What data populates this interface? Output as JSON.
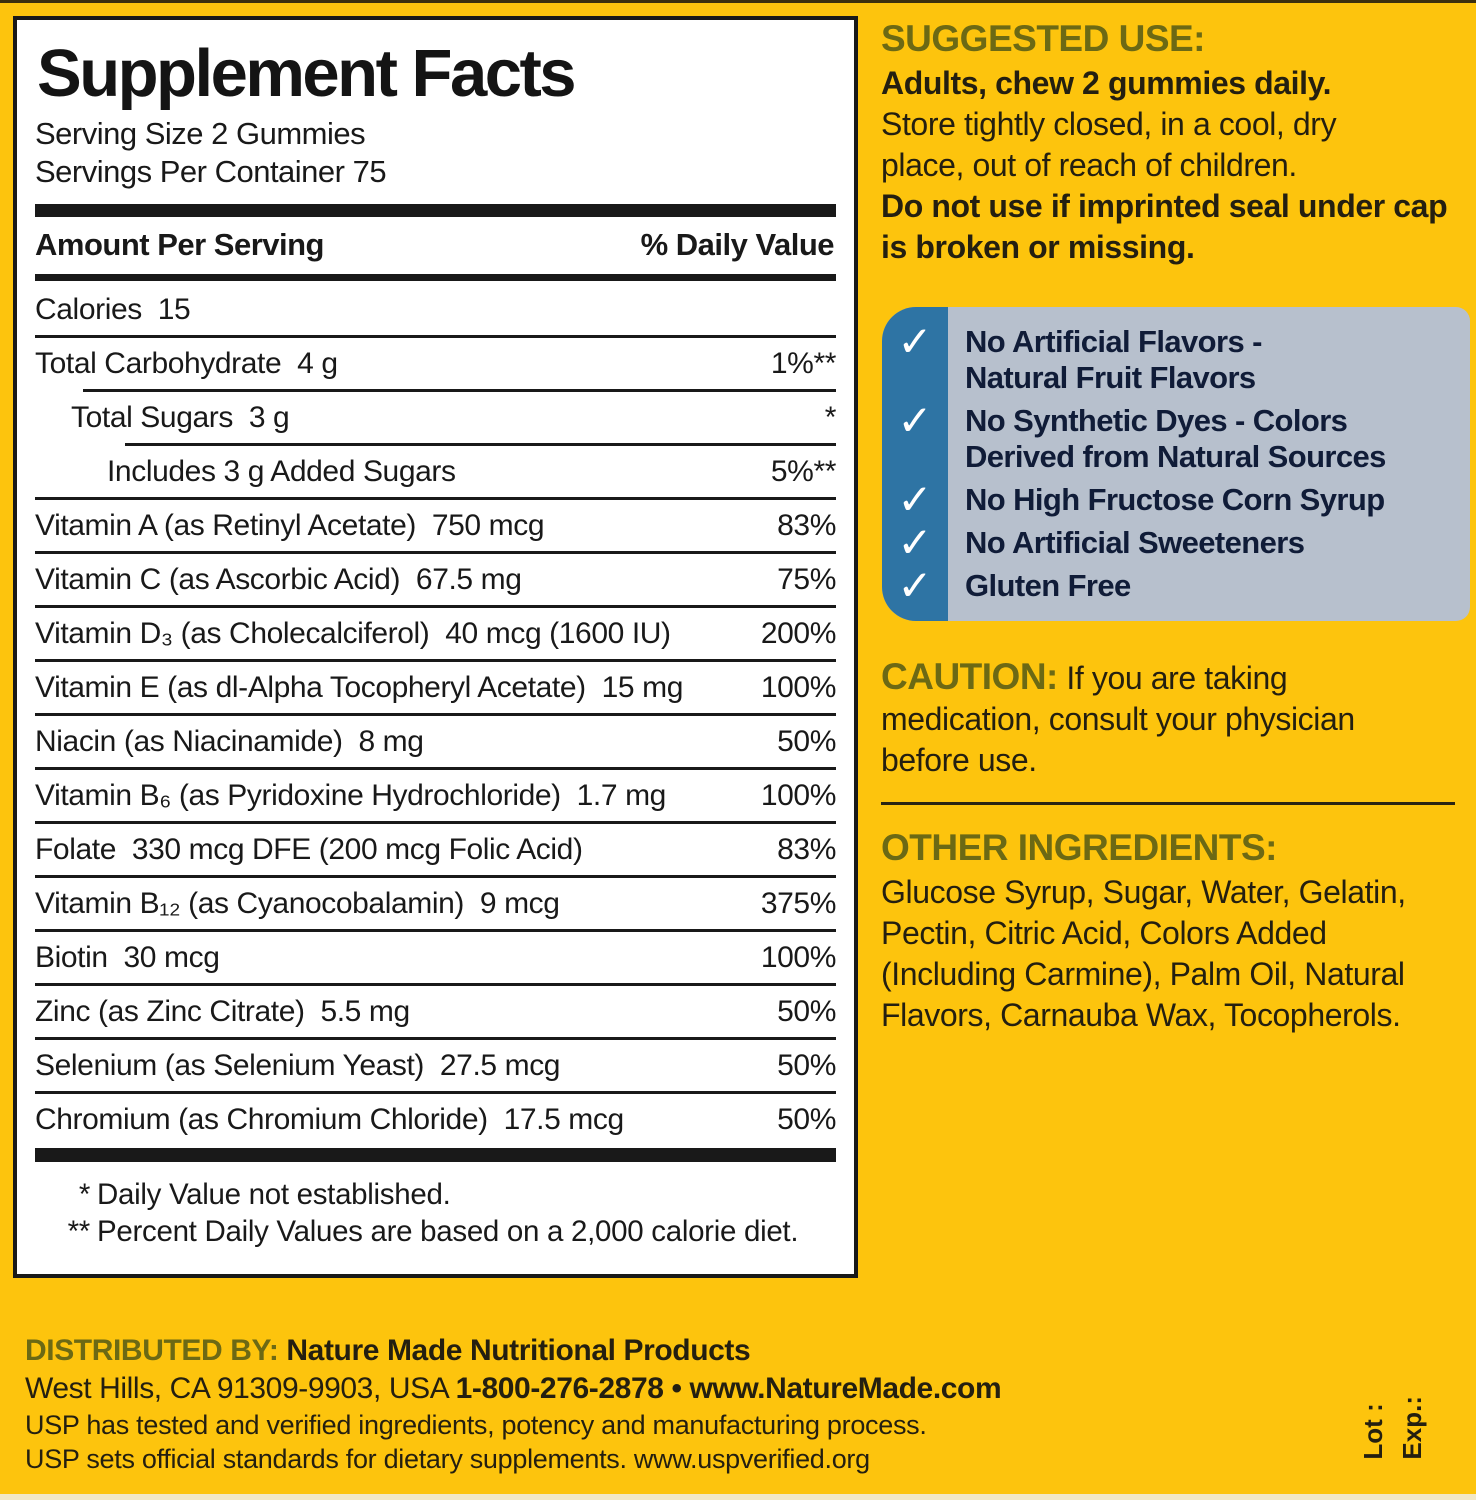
{
  "colors": {
    "background_yellow": "#FDC40D",
    "heading_olive": "#6C6914",
    "body_dark": "#241f10",
    "table_black": "#191919",
    "panel_white": "#FFFFFF",
    "check_strip_blue": "#2E74A4",
    "benefits_bg_blue": "#B7C0CD",
    "benefits_text_navy": "#101c38",
    "checkmark_white": "#FFFFFF"
  },
  "panel": {
    "title": "Supplement Facts",
    "serving_size": "Serving Size 2 Gummies",
    "servings_per_container": "Servings Per Container 75",
    "col_amount": "Amount Per Serving",
    "col_dv": "% Daily Value",
    "rows": [
      {
        "label": "Calories  15",
        "dv": "",
        "indent": 0,
        "sep": "none"
      },
      {
        "label": "Total Carbohydrate  4 g",
        "dv": "1%**",
        "indent": 0,
        "sep": "full"
      },
      {
        "label": "Total Sugars  3 g",
        "dv": "*",
        "indent": 1,
        "sep": "indent1"
      },
      {
        "label": "Includes 3 g Added Sugars",
        "dv": "5%**",
        "indent": 2,
        "sep": "indent2"
      },
      {
        "label": "Vitamin A (as Retinyl Acetate)  750 mcg",
        "dv": "83%",
        "indent": 0,
        "sep": "full"
      },
      {
        "label": "Vitamin C (as Ascorbic Acid)  67.5 mg",
        "dv": "75%",
        "indent": 0,
        "sep": "full"
      },
      {
        "label": "Vitamin D₃ (as Cholecalciferol)  40 mcg (1600 IU)",
        "dv": "200%",
        "indent": 0,
        "sep": "full"
      },
      {
        "label": "Vitamin E (as dl-Alpha Tocopheryl Acetate)  15 mg",
        "dv": "100%",
        "indent": 0,
        "sep": "full"
      },
      {
        "label": "Niacin (as Niacinamide)  8 mg",
        "dv": "50%",
        "indent": 0,
        "sep": "full"
      },
      {
        "label": "Vitamin B₆ (as Pyridoxine Hydrochloride)  1.7 mg",
        "dv": "100%",
        "indent": 0,
        "sep": "full"
      },
      {
        "label": "Folate  330 mcg DFE (200 mcg Folic Acid)",
        "dv": "83%",
        "indent": 0,
        "sep": "full"
      },
      {
        "label": "Vitamin B₁₂ (as Cyanocobalamin)  9 mcg",
        "dv": "375%",
        "indent": 0,
        "sep": "full"
      },
      {
        "label": "Biotin  30 mcg",
        "dv": "100%",
        "indent": 0,
        "sep": "full"
      },
      {
        "label": "Zinc (as Zinc Citrate)  5.5 mg",
        "dv": "50%",
        "indent": 0,
        "sep": "full"
      },
      {
        "label": "Selenium (as Selenium Yeast)  27.5 mcg",
        "dv": "50%",
        "indent": 0,
        "sep": "full"
      },
      {
        "label": "Chromium (as Chromium Chloride)  17.5 mcg",
        "dv": "50%",
        "indent": 0,
        "sep": "full"
      }
    ],
    "footnotes": [
      {
        "mark": "*",
        "text": "Daily Value not established."
      },
      {
        "mark": "**",
        "text": "Percent Daily Values are based on a 2,000 calorie diet."
      }
    ]
  },
  "suggested_use": {
    "heading": "SUGGESTED USE:",
    "adults": "Adults, chew 2 gummies daily.",
    "store": "Store tightly closed, in a cool, dry\nplace, out of reach of children.",
    "do_not": "Do not use if imprinted seal under cap\nis broken or missing."
  },
  "badges": {
    "check_glyph": "✓",
    "items": [
      "No Artificial Flavors -\nNatural Fruit Flavors",
      "No Synthetic Dyes - Colors\nDerived from Natural Sources",
      "No High Fructose Corn Syrup",
      "No Artificial Sweeteners",
      "Gluten Free"
    ]
  },
  "caution": {
    "heading": "CAUTION:",
    "text": " If you are taking\nmedication, consult your physician\nbefore use."
  },
  "other_ingredients": {
    "heading": "OTHER INGREDIENTS:",
    "text": "Glucose Syrup, Sugar, Water, Gelatin,\nPectin, Citric Acid, Colors Added\n(Including Carmine), Palm Oil, Natural\nFlavors, Carnauba Wax, Tocopherols."
  },
  "footer": {
    "distributed_label": "DISTRIBUTED BY:",
    "distributed_value": " Nature Made Nutritional Products",
    "address": "West Hills, CA 91309-9903, USA ",
    "phone_web": "1-800-276-2878 • www.NatureMade.com",
    "usp_line1": "USP has tested and verified ingredients, potency and manufacturing process.",
    "usp_line2": "USP sets official standards for dietary supplements. ",
    "usp_line2_link": "www.uspverified.org",
    "lot_label": "Lot :",
    "exp_label": "Exp.:"
  }
}
